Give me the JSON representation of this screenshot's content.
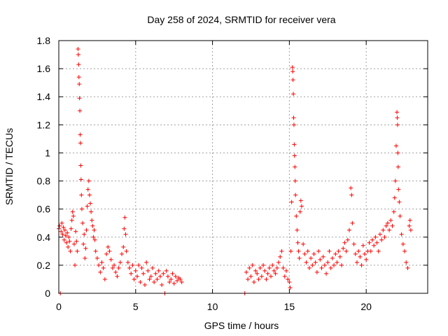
{
  "chart_data": {
    "type": "scatter",
    "title": "Day 258 of 2024, SRMTID for receiver vera",
    "xlabel": "GPS time / hours",
    "ylabel": "SRMTID / TECUs",
    "xlim": [
      0,
      24
    ],
    "ylim": [
      0,
      1.8
    ],
    "x_ticks": [
      0,
      5,
      10,
      15,
      20
    ],
    "x_tick_labels": [
      "0",
      "5",
      "10",
      "15",
      "20"
    ],
    "y_ticks": [
      0,
      0.2,
      0.4,
      0.6,
      0.8,
      1.0,
      1.2,
      1.4,
      1.6,
      1.8
    ],
    "y_tick_labels": [
      "0",
      "0.2",
      "0.4",
      "0.6",
      "0.8",
      "1",
      "1.2",
      "1.4",
      "1.6",
      "1.8"
    ],
    "grid": true,
    "marker": "+",
    "series": [
      {
        "name": "SRMTID",
        "color": "#ff0000",
        "points": [
          [
            0.0,
            0.46
          ],
          [
            0.05,
            0.48
          ],
          [
            0.1,
            0.0
          ],
          [
            0.15,
            0.44
          ],
          [
            0.2,
            0.5
          ],
          [
            0.25,
            0.42
          ],
          [
            0.3,
            0.47
          ],
          [
            0.35,
            0.38
          ],
          [
            0.4,
            0.45
          ],
          [
            0.45,
            0.41
          ],
          [
            0.5,
            0.36
          ],
          [
            0.55,
            0.43
          ],
          [
            0.6,
            0.33
          ],
          [
            0.65,
            0.4
          ],
          [
            0.7,
            0.37
          ],
          [
            0.75,
            0.3
          ],
          [
            0.8,
            0.46
          ],
          [
            0.85,
            0.52
          ],
          [
            0.9,
            0.58
          ],
          [
            0.95,
            0.55
          ],
          [
            1.0,
            0.35
          ],
          [
            1.05,
            0.2
          ],
          [
            1.1,
            0.44
          ],
          [
            1.15,
            0.37
          ],
          [
            1.2,
            0.3
          ],
          [
            1.25,
            1.74
          ],
          [
            1.27,
            1.7
          ],
          [
            1.29,
            1.63
          ],
          [
            1.31,
            1.54
          ],
          [
            1.33,
            1.49
          ],
          [
            1.35,
            1.39
          ],
          [
            1.37,
            1.3
          ],
          [
            1.39,
            1.13
          ],
          [
            1.41,
            1.07
          ],
          [
            1.43,
            0.91
          ],
          [
            1.45,
            0.81
          ],
          [
            1.47,
            0.7
          ],
          [
            1.5,
            0.6
          ],
          [
            1.55,
            0.5
          ],
          [
            1.6,
            0.35
          ],
          [
            1.65,
            0.42
          ],
          [
            1.7,
            0.25
          ],
          [
            1.75,
            0.32
          ],
          [
            1.8,
            0.45
          ],
          [
            1.85,
            0.62
          ],
          [
            1.9,
            0.74
          ],
          [
            1.95,
            0.8
          ],
          [
            2.0,
            0.7
          ],
          [
            2.05,
            0.64
          ],
          [
            2.1,
            0.58
          ],
          [
            2.15,
            0.52
          ],
          [
            2.2,
            0.48
          ],
          [
            2.25,
            0.4
          ],
          [
            2.3,
            0.45
          ],
          [
            2.35,
            0.38
          ],
          [
            2.4,
            0.3
          ],
          [
            2.5,
            0.25
          ],
          [
            2.6,
            0.2
          ],
          [
            2.7,
            0.15
          ],
          [
            2.8,
            0.22
          ],
          [
            2.9,
            0.18
          ],
          [
            3.0,
            0.1
          ],
          [
            3.1,
            0.28
          ],
          [
            3.2,
            0.33
          ],
          [
            3.3,
            0.3
          ],
          [
            3.4,
            0.24
          ],
          [
            3.5,
            0.18
          ],
          [
            3.6,
            0.2
          ],
          [
            3.7,
            0.15
          ],
          [
            3.8,
            0.12
          ],
          [
            3.9,
            0.18
          ],
          [
            4.0,
            0.22
          ],
          [
            4.1,
            0.28
          ],
          [
            4.2,
            0.33
          ],
          [
            4.25,
            0.46
          ],
          [
            4.3,
            0.54
          ],
          [
            4.35,
            0.42
          ],
          [
            4.4,
            0.3
          ],
          [
            4.5,
            0.22
          ],
          [
            4.6,
            0.18
          ],
          [
            4.7,
            0.14
          ],
          [
            4.8,
            0.2
          ],
          [
            4.9,
            0.1
          ],
          [
            5.0,
            0.16
          ],
          [
            5.1,
            0.12
          ],
          [
            5.2,
            0.2
          ],
          [
            5.3,
            0.08
          ],
          [
            5.4,
            0.18
          ],
          [
            5.5,
            0.14
          ],
          [
            5.6,
            0.06
          ],
          [
            5.7,
            0.22
          ],
          [
            5.8,
            0.16
          ],
          [
            5.9,
            0.1
          ],
          [
            6.0,
            0.12
          ],
          [
            6.1,
            0.18
          ],
          [
            6.2,
            0.08
          ],
          [
            6.3,
            0.14
          ],
          [
            6.4,
            0.1
          ],
          [
            6.5,
            0.16
          ],
          [
            6.6,
            0.12
          ],
          [
            6.7,
            0.06
          ],
          [
            6.8,
            0.14
          ],
          [
            6.9,
            0.0
          ],
          [
            7.0,
            0.16
          ],
          [
            7.1,
            0.12
          ],
          [
            7.2,
            0.08
          ],
          [
            7.3,
            0.1
          ],
          [
            7.4,
            0.14
          ],
          [
            7.5,
            0.07
          ],
          [
            7.6,
            0.12
          ],
          [
            7.7,
            0.09
          ],
          [
            7.8,
            0.11
          ],
          [
            7.9,
            0.1
          ],
          [
            8.0,
            0.08
          ],
          [
            12.1,
            0.0
          ],
          [
            12.2,
            0.15
          ],
          [
            12.3,
            0.1
          ],
          [
            12.4,
            0.18
          ],
          [
            12.5,
            0.12
          ],
          [
            12.6,
            0.2
          ],
          [
            12.7,
            0.08
          ],
          [
            12.8,
            0.16
          ],
          [
            12.9,
            0.14
          ],
          [
            13.0,
            0.1
          ],
          [
            13.1,
            0.18
          ],
          [
            13.2,
            0.12
          ],
          [
            13.3,
            0.2
          ],
          [
            13.4,
            0.16
          ],
          [
            13.5,
            0.1
          ],
          [
            13.6,
            0.14
          ],
          [
            13.7,
            0.18
          ],
          [
            13.8,
            0.12
          ],
          [
            13.9,
            0.2
          ],
          [
            14.0,
            0.16
          ],
          [
            14.1,
            0.14
          ],
          [
            14.2,
            0.18
          ],
          [
            14.3,
            0.22
          ],
          [
            14.4,
            0.26
          ],
          [
            14.5,
            0.3
          ],
          [
            14.6,
            0.18
          ],
          [
            14.7,
            0.12
          ],
          [
            14.8,
            0.16
          ],
          [
            14.9,
            0.1
          ],
          [
            15.0,
            0.08
          ],
          [
            15.05,
            0.04
          ],
          [
            15.1,
            0.3
          ],
          [
            15.15,
            0.65
          ],
          [
            15.2,
            1.61
          ],
          [
            15.22,
            1.58
          ],
          [
            15.24,
            1.52
          ],
          [
            15.26,
            1.42
          ],
          [
            15.28,
            1.25
          ],
          [
            15.3,
            1.2
          ],
          [
            15.32,
            1.06
          ],
          [
            15.34,
            0.98
          ],
          [
            15.36,
            0.9
          ],
          [
            15.38,
            0.8
          ],
          [
            15.4,
            0.7
          ],
          [
            15.45,
            0.55
          ],
          [
            15.5,
            0.45
          ],
          [
            15.55,
            0.36
          ],
          [
            15.6,
            0.3
          ],
          [
            15.65,
            0.25
          ],
          [
            15.7,
            0.58
          ],
          [
            15.75,
            0.66
          ],
          [
            15.8,
            0.62
          ],
          [
            15.9,
            0.35
          ],
          [
            16.0,
            0.28
          ],
          [
            16.1,
            0.22
          ],
          [
            16.2,
            0.3
          ],
          [
            16.3,
            0.18
          ],
          [
            16.4,
            0.25
          ],
          [
            16.5,
            0.2
          ],
          [
            16.6,
            0.28
          ],
          [
            16.7,
            0.22
          ],
          [
            16.8,
            0.15
          ],
          [
            16.9,
            0.3
          ],
          [
            17.0,
            0.24
          ],
          [
            17.1,
            0.18
          ],
          [
            17.2,
            0.26
          ],
          [
            17.3,
            0.2
          ],
          [
            17.4,
            0.14
          ],
          [
            17.5,
            0.22
          ],
          [
            17.6,
            0.3
          ],
          [
            17.7,
            0.18
          ],
          [
            17.8,
            0.25
          ],
          [
            17.9,
            0.2
          ],
          [
            18.0,
            0.28
          ],
          [
            18.1,
            0.22
          ],
          [
            18.2,
            0.3
          ],
          [
            18.3,
            0.26
          ],
          [
            18.4,
            0.2
          ],
          [
            18.5,
            0.32
          ],
          [
            18.6,
            0.36
          ],
          [
            18.7,
            0.3
          ],
          [
            18.8,
            0.38
          ],
          [
            18.9,
            0.45
          ],
          [
            19.0,
            0.75
          ],
          [
            19.05,
            0.7
          ],
          [
            19.1,
            0.5
          ],
          [
            19.2,
            0.35
          ],
          [
            19.3,
            0.28
          ],
          [
            19.4,
            0.22
          ],
          [
            19.5,
            0.3
          ],
          [
            19.6,
            0.26
          ],
          [
            19.7,
            0.2
          ],
          [
            19.8,
            0.34
          ],
          [
            19.9,
            0.28
          ],
          [
            20.0,
            0.24
          ],
          [
            20.1,
            0.3
          ],
          [
            20.2,
            0.36
          ],
          [
            20.3,
            0.3
          ],
          [
            20.4,
            0.38
          ],
          [
            20.5,
            0.34
          ],
          [
            20.6,
            0.4
          ],
          [
            20.7,
            0.36
          ],
          [
            20.8,
            0.3
          ],
          [
            20.9,
            0.42
          ],
          [
            21.0,
            0.38
          ],
          [
            21.1,
            0.45
          ],
          [
            21.2,
            0.4
          ],
          [
            21.3,
            0.48
          ],
          [
            21.4,
            0.5
          ],
          [
            21.5,
            0.45
          ],
          [
            21.6,
            0.52
          ],
          [
            21.7,
            0.48
          ],
          [
            21.8,
            0.58
          ],
          [
            21.85,
            0.68
          ],
          [
            21.9,
            0.8
          ],
          [
            21.95,
            1.05
          ],
          [
            22.0,
            1.29
          ],
          [
            22.02,
            1.25
          ],
          [
            22.04,
            1.2
          ],
          [
            22.06,
            1.0
          ],
          [
            22.08,
            0.9
          ],
          [
            22.1,
            0.74
          ],
          [
            22.15,
            0.65
          ],
          [
            22.2,
            0.55
          ],
          [
            22.3,
            0.42
          ],
          [
            22.4,
            0.35
          ],
          [
            22.5,
            0.3
          ],
          [
            22.6,
            0.22
          ],
          [
            22.7,
            0.18
          ],
          [
            22.8,
            0.48
          ],
          [
            22.85,
            0.52
          ],
          [
            22.9,
            0.45
          ]
        ]
      }
    ]
  }
}
